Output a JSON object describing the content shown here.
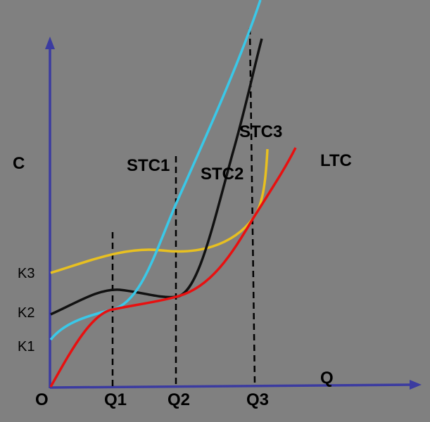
{
  "axes": {
    "y_label": "C",
    "x_label": "Q",
    "origin": "O"
  },
  "y_marks": [
    "K3",
    "K2",
    "K1"
  ],
  "x_marks": [
    "Q1",
    "Q2",
    "Q3"
  ],
  "curves": [
    "STC1",
    "STC2",
    "STC3",
    "LTC"
  ]
}
